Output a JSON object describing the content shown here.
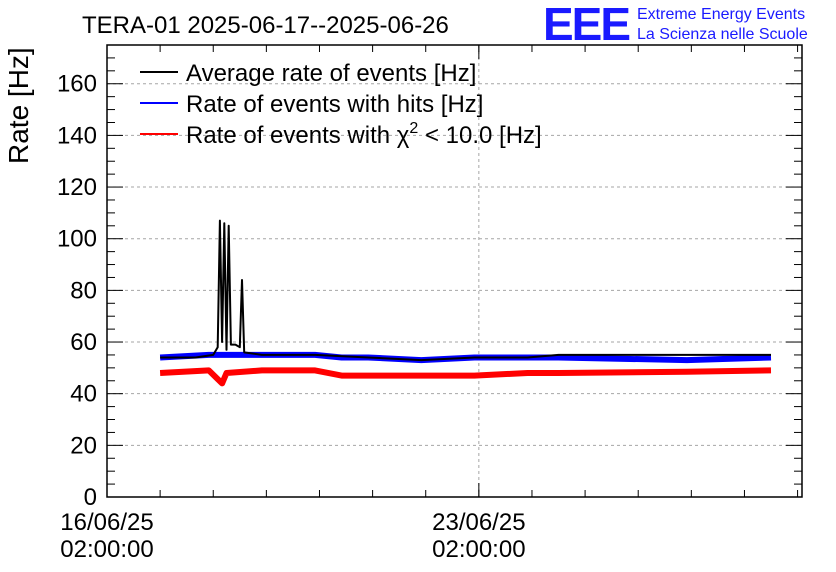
{
  "chart_data": {
    "type": "line",
    "title": "TERA-01 2025-06-17--2025-06-26",
    "ylabel": "Rate [Hz]",
    "xlabel": "",
    "ylim": [
      0,
      175
    ],
    "yticks": [
      0,
      20,
      40,
      60,
      80,
      100,
      120,
      140,
      160
    ],
    "xlim": [
      "2025-06-16T02:00:00",
      "2025-06-29T04:00:00"
    ],
    "xticks": [
      {
        "value": "2025-06-16T02:00:00",
        "line1": "16/06/25",
        "line2": "02:00:00"
      },
      {
        "value": "2025-06-23T02:00:00",
        "line1": "23/06/25",
        "line2": "02:00:00"
      }
    ],
    "grid": true,
    "legend_position": "top-left",
    "legend_entries": [
      {
        "text": "Average rate of events [Hz]",
        "color": "#000000"
      },
      {
        "text": "Rate of events with hits [Hz]",
        "color": "#0000ff"
      },
      {
        "prefix": "Rate of events with ",
        "symbol": "χ",
        "sup": "2",
        "suffix": " < 10.0 [Hz]",
        "color": "#ff0000"
      }
    ],
    "series": [
      {
        "color": "#000000",
        "x": [
          "2025-06-17T02:00:00",
          "2025-06-17T18:00:00",
          "2025-06-18T02:00:00",
          "2025-06-18T04:00:00",
          "2025-06-18T05:00:00",
          "2025-06-18T06:00:00",
          "2025-06-18T07:00:00",
          "2025-06-18T08:00:00",
          "2025-06-18T09:00:00",
          "2025-06-18T10:00:00",
          "2025-06-18T12:00:00",
          "2025-06-18T14:00:00",
          "2025-06-18T15:00:00",
          "2025-06-18T16:00:00",
          "2025-06-19T00:00:00",
          "2025-06-20T00:00:00",
          "2025-06-21T00:00:00",
          "2025-06-22T00:00:00",
          "2025-06-23T00:00:00",
          "2025-06-24T00:00:00",
          "2025-06-24T14:00:00",
          "2025-06-27T00:00:00",
          "2025-06-28T14:00:00"
        ],
        "y": [
          54,
          54,
          55,
          58,
          107,
          60,
          106,
          57,
          105,
          59,
          59,
          58,
          84,
          56,
          55,
          55,
          54,
          53,
          54,
          54,
          55,
          55,
          55
        ]
      },
      {
        "color": "#0000ff",
        "x": [
          "2025-06-17T02:00:00",
          "2025-06-18T00:00:00",
          "2025-06-19T00:00:00",
          "2025-06-20T00:00:00",
          "2025-06-20T12:00:00",
          "2025-06-21T00:00:00",
          "2025-06-22T00:00:00",
          "2025-06-23T00:00:00",
          "2025-06-24T00:00:00",
          "2025-06-24T14:00:00",
          "2025-06-27T00:00:00",
          "2025-06-28T14:00:00"
        ],
        "y": [
          54,
          55,
          55,
          55,
          54,
          54,
          53,
          54,
          54,
          54,
          53,
          54
        ]
      },
      {
        "color": "#ff0000",
        "x": [
          "2025-06-17T02:00:00",
          "2025-06-18T00:00:00",
          "2025-06-18T06:00:00",
          "2025-06-18T08:00:00",
          "2025-06-19T00:00:00",
          "2025-06-20T00:00:00",
          "2025-06-20T12:00:00",
          "2025-06-21T00:00:00",
          "2025-06-22T00:00:00",
          "2025-06-23T00:00:00",
          "2025-06-24T00:00:00",
          "2025-06-24T14:00:00",
          "2025-06-27T00:00:00",
          "2025-06-28T14:00:00"
        ],
        "y": [
          48,
          49,
          44,
          48,
          49,
          49,
          47,
          47,
          47,
          47,
          48,
          48,
          48.5,
          49
        ]
      }
    ]
  },
  "logo": {
    "mark": "EEE",
    "line1": "Extreme Energy Events",
    "line2": "La Scienza nelle Scuole"
  }
}
